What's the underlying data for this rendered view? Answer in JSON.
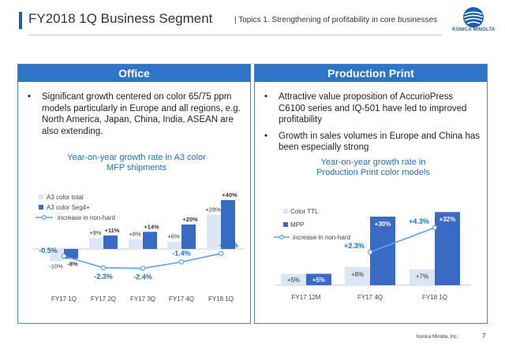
{
  "header": {
    "title": "FY2018 1Q Business Segment",
    "subtitle": "| Topics 1. Strengthening of profitability in core businesses",
    "logo_text": "KONICA MINOLTA",
    "accent": "#1f5fa8"
  },
  "office": {
    "heading": "Office",
    "bullets": [
      "Significant growth centered on color 65/75 ppm models particularly in Europe and all regions, e.g. North America, Japan, China, India, ASEAN are also extending."
    ],
    "chart_title": [
      "Year-on-year growth rate in A3 color",
      "MFP shipments"
    ]
  },
  "production": {
    "heading": "Production Print",
    "bullets": [
      "Attractive value proposition of AccurioPress C6100 series and IQ-501 have led to improved profitability",
      "Growth in sales volumes in Europe and China has been especially strong"
    ],
    "chart_title": [
      "Year-on-year growth rate in",
      "Production Print color models"
    ]
  },
  "chart_data": [
    {
      "type": "bar",
      "categories": [
        "FY17 1Q",
        "FY17 2Q",
        "FY17 3Q",
        "FY17 4Q",
        "FY18 1Q"
      ],
      "series": [
        {
          "name": "A3 color total",
          "values": [
            -10,
            9,
            8,
            6,
            28
          ],
          "labels": [
            "-10%",
            "+9%",
            "+8%",
            "+6%",
            "+28%"
          ],
          "color": "#dce6f4"
        },
        {
          "name": "A3 color Seg4+",
          "values": [
            -8,
            11,
            14,
            20,
            40
          ],
          "labels": [
            "-8%",
            "+11%",
            "+14%",
            "+20%",
            "+40%"
          ],
          "color": "#3a6bc4"
        }
      ],
      "line": {
        "name": "increase in non-hard",
        "values": [
          -0.5,
          -2.3,
          -2.4,
          -1.4,
          -0.1
        ],
        "labels": [
          "-0.5%",
          "-2.3%",
          "-2.4%",
          "-1.4%",
          "-0.1%"
        ],
        "color": "#5aa2e8",
        "label_color": "#2070c0"
      }
    },
    {
      "type": "bar",
      "categories": [
        "FY17 12M",
        "FY17 4Q",
        "FY18 1Q"
      ],
      "series": [
        {
          "name": "Color TTL",
          "values": [
            5,
            8,
            7
          ],
          "labels": [
            "+5%",
            "+8%",
            "+7%"
          ],
          "color": "#dce6f4"
        },
        {
          "name": "MPP",
          "values": [
            5,
            30,
            32
          ],
          "labels": [
            "+5%",
            "+30%",
            "+32%"
          ],
          "color": "#3a6bc4"
        }
      ],
      "line": {
        "name": "increase in non-hard",
        "values": [
          2.3,
          4.3
        ],
        "categories": [
          "FY17 4Q",
          "FY18 1Q"
        ],
        "labels": [
          "+2.3%",
          "+4.3%"
        ],
        "color": "#5aa2e8",
        "label_color": "#2070c0"
      }
    }
  ],
  "footer": {
    "brand": "Konica Minolta, Inc.",
    "page": "7"
  }
}
